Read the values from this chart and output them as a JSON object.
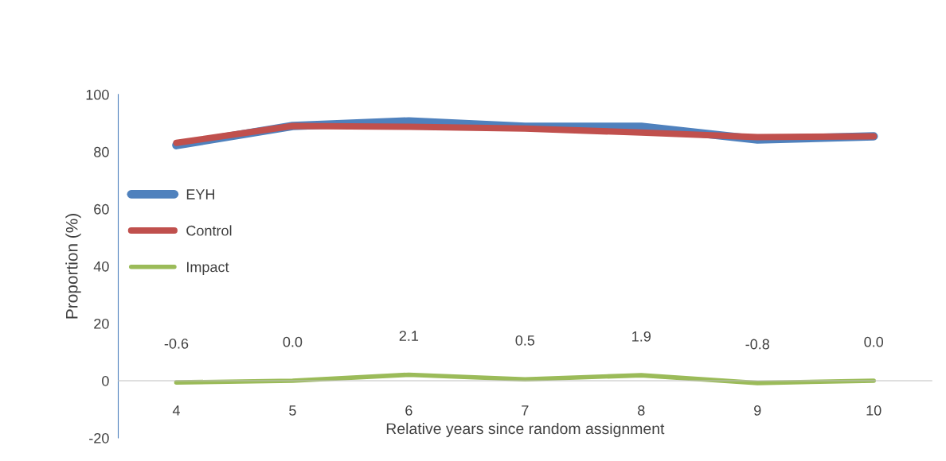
{
  "chart_data": {
    "type": "line",
    "xlabel": "Relative years since random assignment",
    "ylabel": "Proportion (%)",
    "categories": [
      "4",
      "5",
      "6",
      "7",
      "8",
      "9",
      "10"
    ],
    "ylim": [
      -20,
      100
    ],
    "yticks": [
      -20,
      0,
      20,
      40,
      60,
      80,
      100
    ],
    "grid": false,
    "legend": "left",
    "marker": "none",
    "line_style": "solid",
    "series": [
      {
        "name": "EYH",
        "color": "#4f81bd",
        "values": [
          82.3,
          89.0,
          90.6,
          88.7,
          88.7,
          84.3,
          85.4
        ]
      },
      {
        "name": "Control",
        "color": "#c0504d",
        "values": [
          83.1,
          89.0,
          88.7,
          88.1,
          86.7,
          85.1,
          85.4
        ]
      },
      {
        "name": "Impact",
        "color": "#9bbb59",
        "values": [
          -0.6,
          0.0,
          2.1,
          0.5,
          1.9,
          -0.8,
          0.0
        ],
        "value_labels": [
          "-0.6",
          "0.0",
          "2.1",
          "0.5",
          "1.9",
          "-0.8",
          "0.0"
        ]
      }
    ]
  }
}
